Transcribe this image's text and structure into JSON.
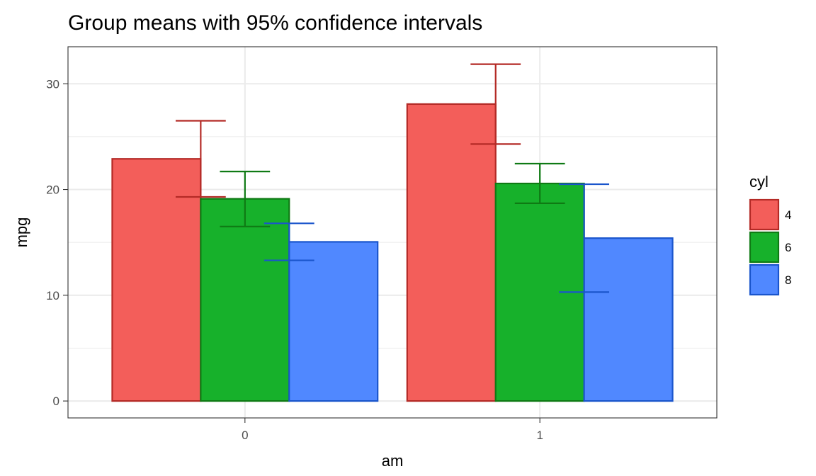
{
  "chart_data": {
    "type": "bar",
    "title": "Group means with 95% confidence intervals",
    "xlabel": "am",
    "ylabel": "mpg",
    "categories": [
      "0",
      "1"
    ],
    "ylim": [
      -1.6,
      33.5
    ],
    "yticks": [
      0,
      10,
      20,
      30
    ],
    "yticklabels": [
      "0",
      "10",
      "20",
      "30"
    ],
    "grid": true,
    "legend": {
      "title": "cyl",
      "position": "right"
    },
    "series": [
      {
        "name": "4",
        "fill": "#F35E5A",
        "stroke": "#B42A26",
        "values": [
          22.9,
          28.08
        ],
        "ci_lower": [
          19.3,
          24.3
        ],
        "ci_upper": [
          26.5,
          31.85
        ]
      },
      {
        "name": "6",
        "fill": "#17B12B",
        "stroke": "#0F7A14",
        "values": [
          19.12,
          20.57
        ],
        "ci_lower": [
          16.5,
          18.7
        ],
        "ci_upper": [
          21.7,
          22.45
        ]
      },
      {
        "name": "8",
        "fill": "#5088FF",
        "stroke": "#1A55CC",
        "values": [
          15.05,
          15.4
        ],
        "ci_lower": [
          13.3,
          10.3
        ],
        "ci_upper": [
          16.8,
          20.5
        ]
      }
    ]
  }
}
